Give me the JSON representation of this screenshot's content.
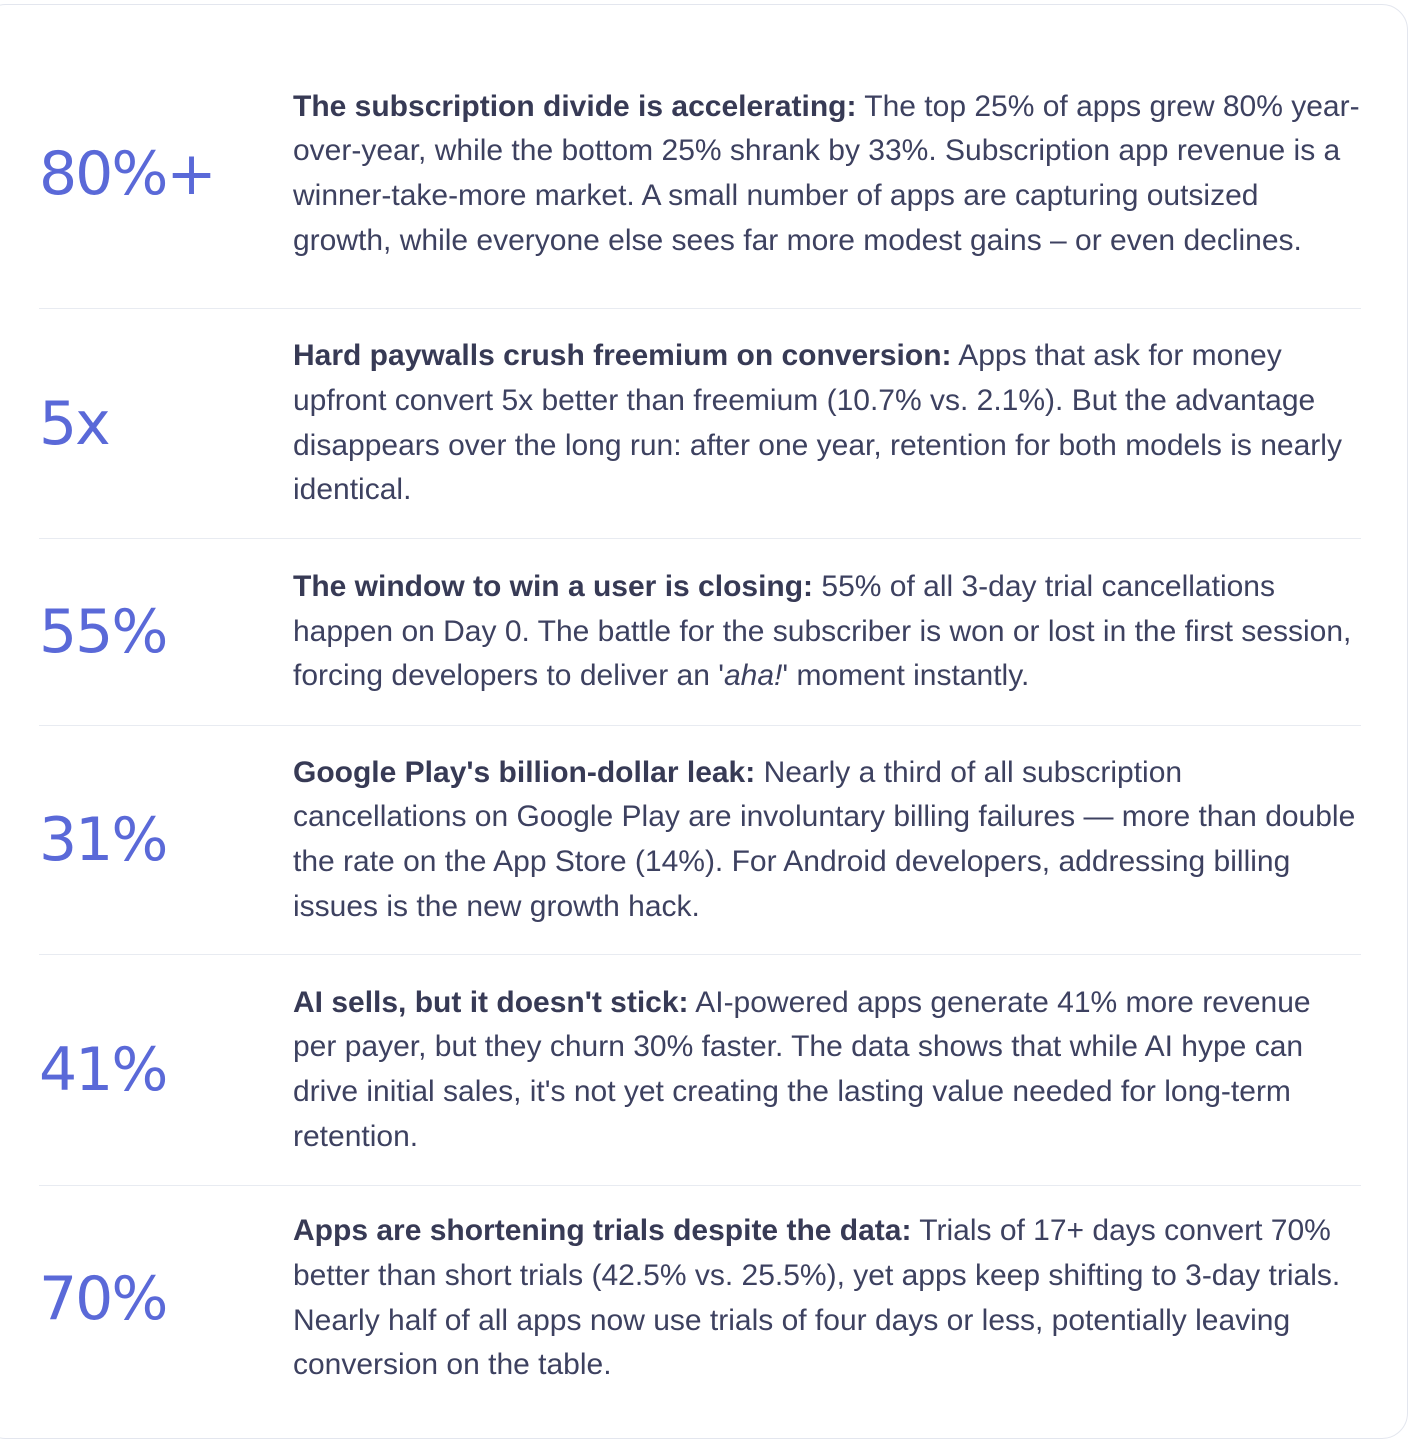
{
  "stats": [
    {
      "figure": "80%+",
      "heading": "The subscription divide is accelerating:",
      "body": " The top 25% of apps grew 80% year-over-year, while the bottom 25% shrank by 33%. Subscription app revenue is a winner-take-more market. A small number of apps are capturing outsized growth, while everyone else sees far more modest gains – or even declines."
    },
    {
      "figure": "5x",
      "heading": "Hard paywalls crush freemium on conversion:",
      "body": " Apps that ask for money upfront convert 5x better than freemium (10.7% vs. 2.1%). But the advantage disappears over the long run: after one year, retention for both models is nearly identical."
    },
    {
      "figure": "55%",
      "heading": "The window to win a user is closing:",
      "body_before": " 55% of all 3-day trial cancellations happen on Day 0. The battle for the subscriber is won or lost in the first session, forcing developers to deliver an '",
      "body_italic": "aha!",
      "body_after": "' moment instantly."
    },
    {
      "figure": "31%",
      "heading": "Google Play's billion-dollar leak:",
      "body": " Nearly a third of all subscription cancellations on Google Play are involuntary billing failures — more than double the rate on the App Store (14%). For Android developers, addressing billing issues is the new growth hack."
    },
    {
      "figure": "41%",
      "heading": "AI sells, but it doesn't stick:",
      "body": " AI-powered apps generate 41% more revenue per payer, but they churn 30% faster. The data shows that while AI hype can drive initial sales, it's not yet creating the lasting value needed for long-term retention."
    },
    {
      "figure": "70%",
      "heading": "Apps are shortening trials despite the data:",
      "body": " Trials of 17+ days convert 70% better than short trials (42.5% vs. 25.5%), yet apps keep shifting to 3-day trials. Nearly half of all apps now use trials of four days or less, potentially leaving conversion on the table."
    }
  ]
}
